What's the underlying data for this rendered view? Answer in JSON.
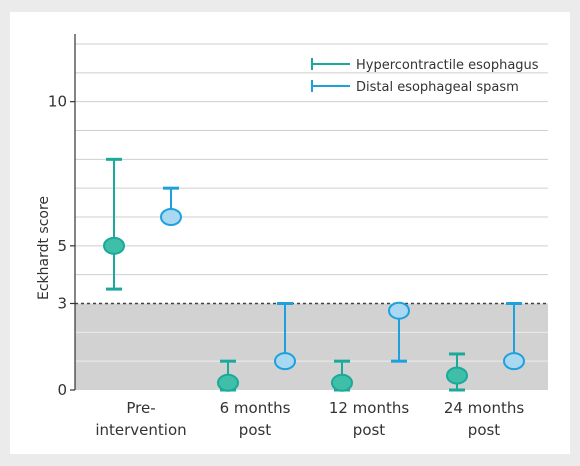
{
  "chart_data": {
    "type": "scatter",
    "title": "",
    "xlabel": "",
    "ylabel": "Eckhardt score",
    "ylim": [
      0,
      12
    ],
    "yticks": [
      0,
      3,
      5,
      10
    ],
    "grid": true,
    "legend_placement": "top-right",
    "threshold": {
      "y": 3,
      "style": "dotted",
      "shade_below": true
    },
    "categories": [
      {
        "label_lines": [
          "Pre-",
          "intervention"
        ]
      },
      {
        "label_lines": [
          "6 months",
          "post"
        ]
      },
      {
        "label_lines": [
          "12 months",
          "post"
        ]
      },
      {
        "label_lines": [
          "24 months",
          "post"
        ]
      }
    ],
    "series": [
      {
        "name": "Hypercontractile esophagus",
        "color": "#1aa99a",
        "fill": "#3fbfa8",
        "points": [
          {
            "y": 5,
            "low": 3.5,
            "high": 8
          },
          {
            "y": 0.25,
            "low": 0,
            "high": 1
          },
          {
            "y": 0.25,
            "low": 0,
            "high": 1
          },
          {
            "y": 0.5,
            "low": 0,
            "high": 1.25
          }
        ]
      },
      {
        "name": "Distal esophageal spasm",
        "color": "#1ea0dc",
        "fill": "#a8d8f2",
        "points": [
          {
            "y": 6,
            "low": 6,
            "high": 7
          },
          {
            "y": 1,
            "low": 1,
            "high": 3
          },
          {
            "y": 2.75,
            "low": 1,
            "high": 2.75
          },
          {
            "y": 1,
            "low": 1,
            "high": 3
          }
        ]
      }
    ],
    "colors": {
      "frame_bg": "#ebebeb",
      "plot_bg": "#ffffff",
      "grid": "#cfcfcf",
      "shade": "#d2d2d2",
      "axis": "#333333",
      "text": "#333333"
    }
  }
}
